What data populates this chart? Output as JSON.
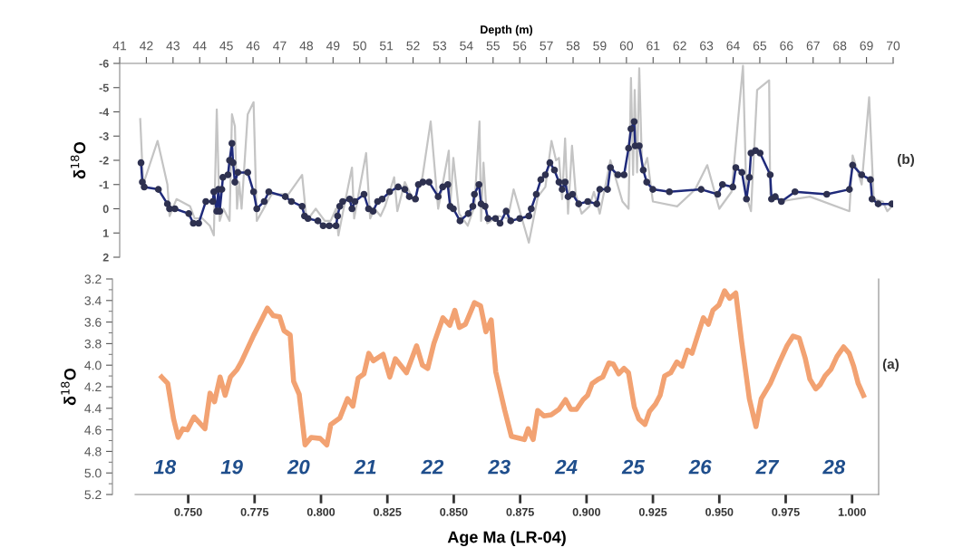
{
  "chart_data": [
    {
      "type": "line",
      "xlabel": "Depth (m)",
      "ylabel": "δ$^{18}$O",
      "xlim": [
        41,
        70
      ],
      "xticks": [
        41,
        42,
        43,
        44,
        45,
        46,
        47,
        48,
        49,
        50,
        51,
        52,
        53,
        54,
        55,
        56,
        57,
        58,
        59,
        60,
        61,
        62,
        63,
        64,
        65,
        66,
        67,
        68,
        69,
        70
      ],
      "ylim": [
        2,
        -6
      ],
      "yticks": [
        {
          "value": -6,
          "label": "-6"
        },
        {
          "value": -5,
          "label": "-5"
        },
        {
          "value": -4,
          "label": "-4"
        },
        {
          "value": -3,
          "label": "-3"
        },
        {
          "value": -2,
          "label": "-2"
        },
        {
          "value": -1,
          "label": "-1"
        },
        0,
        1,
        2
      ],
      "series": [
        {
          "color": "#c4c4c4",
          "marker": "none",
          "x": [
            41.77,
            41.88,
            42.42,
            42.79,
            42.87,
            43.13,
            43.64,
            43.81,
            44.1,
            44.38,
            44.53,
            44.64,
            44.75,
            44.89,
            45.12,
            45.21,
            45.32,
            45.4,
            45.48,
            45.57,
            45.8,
            46.02,
            46.14,
            46.7,
            47.33,
            47.84,
            48.01,
            48.35,
            48.69,
            48.91,
            49.11,
            49.2,
            49.36,
            49.71,
            49.79,
            50.24,
            50.39,
            50.56,
            50.78,
            50.95,
            51.29,
            51.41,
            51.69,
            52.03,
            52.35,
            52.66,
            52.94,
            53.34,
            53.39,
            53.51,
            53.73,
            54.05,
            54.3,
            54.49,
            54.55,
            54.64,
            54.78,
            55.21,
            55.55,
            55.77,
            56.34,
            56.68,
            56.96,
            57.19,
            57.36,
            57.47,
            57.59,
            57.7,
            57.81,
            57.96,
            58.1,
            58.32,
            58.61,
            58.78,
            59.0,
            59.4,
            59.85,
            60.08,
            60.17,
            60.25,
            60.31,
            60.4,
            60.48,
            60.59,
            60.78,
            60.99,
            61.9,
            62.58,
            63.03,
            63.48,
            63.94,
            64.37,
            64.5,
            64.67,
            64.9,
            65.35,
            65.39,
            65.75,
            66.88,
            68.36,
            68.48,
            68.82,
            69.1,
            69.27,
            69.61,
            69.78,
            69.95
          ],
          "values": [
            -3.7,
            -1.0,
            -2.8,
            -1.0,
            0.3,
            -0.4,
            -0.1,
            0.4,
            0.4,
            0.7,
            1.1,
            -4.1,
            0.5,
            0.0,
            0.5,
            -3.9,
            -3.4,
            0.0,
            -1.1,
            0.0,
            -3.9,
            -4.4,
            0.5,
            -0.6,
            -0.6,
            -1.4,
            0.5,
            0.0,
            0.5,
            0.5,
            0.0,
            1.1,
            0.2,
            -1.7,
            0.4,
            -2.3,
            0.4,
            0.0,
            0.3,
            -0.1,
            -1.3,
            0.1,
            -1.1,
            -0.3,
            -1.3,
            -3.6,
            0.0,
            -2.4,
            0.0,
            -2.1,
            0.2,
            0.7,
            -0.1,
            -3.6,
            0.5,
            -1.9,
            0.6,
            0.3,
            0.4,
            -0.8,
            1.4,
            -0.5,
            -0.9,
            -2.8,
            -2.0,
            -2.1,
            -0.4,
            -2.9,
            0.2,
            -2.6,
            -0.6,
            0.2,
            -0.1,
            -0.7,
            0.2,
            -2.0,
            -0.3,
            0.0,
            -5.4,
            -1.4,
            -4.9,
            -1.5,
            -5.8,
            -1.5,
            -2.1,
            -0.3,
            -0.1,
            -0.8,
            -1.8,
            0.0,
            -0.7,
            -5.9,
            -0.5,
            0.1,
            -4.9,
            -5.3,
            -0.6,
            -0.3,
            -0.5,
            0.1,
            -2.2,
            -1.0,
            -4.6,
            -0.4,
            -0.3,
            0.1,
            -0.1
          ]
        },
        {
          "color": "#1f2a7a",
          "marker": "circle",
          "x": [
            41.8,
            41.85,
            41.92,
            42.45,
            42.79,
            42.87,
            43.07,
            43.59,
            43.76,
            43.96,
            44.23,
            44.49,
            44.53,
            44.64,
            44.7,
            44.75,
            44.83,
            44.87,
            45.06,
            45.12,
            45.21,
            45.25,
            45.32,
            45.43,
            45.8,
            46.02,
            46.14,
            46.42,
            46.59,
            47.21,
            47.44,
            47.84,
            47.93,
            48.06,
            48.43,
            48.63,
            48.86,
            49.11,
            49.17,
            49.25,
            49.36,
            49.62,
            49.71,
            49.82,
            50.16,
            50.33,
            50.5,
            50.67,
            50.84,
            51.12,
            51.44,
            51.69,
            51.86,
            52.09,
            52.2,
            52.37,
            52.6,
            52.94,
            53.11,
            53.3,
            53.39,
            53.51,
            53.76,
            54.07,
            54.24,
            54.3,
            54.47,
            54.55,
            54.7,
            54.81,
            55.09,
            55.26,
            55.49,
            55.66,
            56.0,
            56.34,
            56.43,
            56.62,
            56.79,
            56.96,
            57.13,
            57.3,
            57.47,
            57.59,
            57.7,
            57.81,
            57.98,
            58.21,
            58.55,
            58.89,
            59.0,
            59.29,
            59.4,
            59.68,
            59.91,
            60.08,
            60.17,
            60.29,
            60.33,
            60.48,
            60.63,
            60.76,
            60.99,
            61.61,
            62.8,
            63.42,
            63.6,
            63.99,
            64.1,
            64.33,
            64.5,
            64.61,
            64.67,
            64.84,
            65.01,
            65.39,
            65.44,
            65.58,
            65.81,
            66.32,
            67.51,
            68.36,
            68.48,
            68.82,
            69.15,
            69.21,
            69.44,
            69.95
          ],
          "values": [
            -1.9,
            -1.1,
            -0.9,
            -0.8,
            -0.2,
            0.0,
            0.0,
            0.2,
            0.6,
            0.6,
            -0.3,
            -0.3,
            -0.7,
            0.1,
            -0.8,
            0.1,
            -0.8,
            -1.3,
            -1.4,
            -2.0,
            -2.7,
            -1.9,
            -1.1,
            -1.5,
            -1.5,
            -0.7,
            0.0,
            -0.3,
            -0.7,
            -0.5,
            -0.3,
            -0.1,
            0.3,
            0.4,
            0.5,
            0.7,
            0.7,
            0.7,
            0.3,
            -0.1,
            -0.3,
            -0.4,
            0.0,
            -0.3,
            -0.6,
            0.0,
            0.1,
            -0.3,
            -0.4,
            -0.7,
            -0.9,
            -0.8,
            -0.5,
            -0.4,
            -1.0,
            -1.1,
            -1.1,
            -0.5,
            -0.9,
            -1.0,
            -0.1,
            0.0,
            0.5,
            0.2,
            -0.1,
            -0.6,
            -1.0,
            -0.2,
            -0.1,
            0.4,
            0.4,
            0.6,
            0.1,
            0.5,
            0.4,
            0.3,
            0.0,
            -0.6,
            -1.2,
            -1.4,
            -1.9,
            -1.6,
            -1.1,
            -0.8,
            -1.1,
            -0.5,
            -0.6,
            -0.2,
            -0.3,
            -0.2,
            -0.8,
            -0.8,
            -1.7,
            -1.4,
            -1.4,
            -2.5,
            -3.3,
            -3.6,
            -2.6,
            -2.6,
            -1.6,
            -1.1,
            -0.8,
            -0.7,
            -0.8,
            -0.6,
            -1.0,
            -0.9,
            -1.7,
            -1.5,
            -0.4,
            -1.3,
            -2.3,
            -2.4,
            -2.3,
            -1.4,
            -0.4,
            -0.5,
            -0.3,
            -0.7,
            -0.6,
            -0.8,
            -1.8,
            -1.4,
            -1.2,
            -0.4,
            -0.2,
            -0.2
          ]
        }
      ],
      "annotations": [
        "(b)"
      ]
    },
    {
      "type": "line",
      "xlabel": "Age Ma (LR-04)",
      "ylabel": "δ$^{18}$O",
      "xlim": [
        0.73,
        1.01
      ],
      "xticks": [
        {
          "value": 0.75,
          "label": "0.750"
        },
        {
          "value": 0.775,
          "label": "0.775"
        },
        {
          "value": 0.8,
          "label": "0.800"
        },
        {
          "value": 0.825,
          "label": "0.825"
        },
        {
          "value": 0.85,
          "label": "0.850"
        },
        {
          "value": 0.875,
          "label": "0.875"
        },
        {
          "value": 0.9,
          "label": "0.900"
        },
        {
          "value": 0.925,
          "label": "0.925"
        },
        {
          "value": 0.95,
          "label": "0.950"
        },
        {
          "value": 0.975,
          "label": "0.975"
        },
        {
          "value": 1.0,
          "label": "1.000"
        }
      ],
      "ylim": [
        5.2,
        3.2
      ],
      "yticks": [
        3.2,
        3.4,
        3.6,
        3.8,
        {
          "value": 4.0,
          "label": "4.0"
        },
        4.2,
        4.4,
        4.6,
        4.8,
        {
          "value": 5.0,
          "label": "5.0"
        },
        5.2
      ],
      "series": [
        {
          "color": "#f2a272",
          "marker": "none",
          "x": [
            0.74,
            0.7423,
            0.7445,
            0.7462,
            0.748,
            0.7497,
            0.7522,
            0.7563,
            0.7582,
            0.7599,
            0.762,
            0.7639,
            0.7659,
            0.7684,
            0.77,
            0.7747,
            0.777,
            0.7798,
            0.782,
            0.7844,
            0.7861,
            0.7884,
            0.7897,
            0.7918,
            0.794,
            0.7963,
            0.7997,
            0.8022,
            0.8037,
            0.8071,
            0.81,
            0.812,
            0.814,
            0.8162,
            0.818,
            0.8197,
            0.8234,
            0.8259,
            0.828,
            0.8322,
            0.836,
            0.8382,
            0.8402,
            0.8425,
            0.8459,
            0.8485,
            0.8504,
            0.8521,
            0.8544,
            0.8578,
            0.8601,
            0.8621,
            0.8641,
            0.8658,
            0.8692,
            0.8717,
            0.8766,
            0.878,
            0.8799,
            0.8816,
            0.8839,
            0.8867,
            0.8896,
            0.8921,
            0.8941,
            0.8962,
            0.8987,
            0.9004,
            0.9021,
            0.9044,
            0.9061,
            0.9084,
            0.9101,
            0.9121,
            0.9141,
            0.9158,
            0.918,
            0.9197,
            0.922,
            0.9237,
            0.926,
            0.9277,
            0.9294,
            0.9317,
            0.934,
            0.936,
            0.938,
            0.9397,
            0.9419,
            0.944,
            0.9459,
            0.9476,
            0.9499,
            0.952,
            0.9539,
            0.9562,
            0.9584,
            0.9613,
            0.9638,
            0.9658,
            0.9692,
            0.9727,
            0.9755,
            0.9778,
            0.9801,
            0.9824,
            0.9841,
            0.9863,
            0.988,
            0.9898,
            0.992,
            0.9943,
            0.9968,
            0.9989,
            1.0006,
            1.0023,
            1.0043
          ],
          "values": [
            4.11,
            4.17,
            4.5,
            4.67,
            4.59,
            4.6,
            4.48,
            4.59,
            4.26,
            4.34,
            4.11,
            4.28,
            4.11,
            4.04,
            3.97,
            3.72,
            3.61,
            3.47,
            3.54,
            3.55,
            3.68,
            3.72,
            4.15,
            4.27,
            4.74,
            4.67,
            4.68,
            4.74,
            4.55,
            4.49,
            4.31,
            4.38,
            4.12,
            4.08,
            3.89,
            3.96,
            3.9,
            4.11,
            3.94,
            4.07,
            3.82,
            4.0,
            4.03,
            3.8,
            3.56,
            3.63,
            3.49,
            3.65,
            3.62,
            3.42,
            3.45,
            3.69,
            3.58,
            4.06,
            4.42,
            4.66,
            4.69,
            4.59,
            4.69,
            4.42,
            4.47,
            4.46,
            4.41,
            4.32,
            4.41,
            4.41,
            4.32,
            4.28,
            4.17,
            4.13,
            4.11,
            3.98,
            3.99,
            4.08,
            4.03,
            4.07,
            4.39,
            4.5,
            4.55,
            4.43,
            4.36,
            4.28,
            4.1,
            4.07,
            3.97,
            4.01,
            3.86,
            3.89,
            3.72,
            3.56,
            3.62,
            3.49,
            3.44,
            3.31,
            3.38,
            3.33,
            3.78,
            4.31,
            4.57,
            4.31,
            4.17,
            3.97,
            3.82,
            3.73,
            3.75,
            3.94,
            4.13,
            4.22,
            4.18,
            4.1,
            4.04,
            3.92,
            3.83,
            3.89,
            4.01,
            4.17,
            4.28
          ]
        }
      ],
      "annotations": [
        "(a)",
        "18",
        "19",
        "20",
        "21",
        "22",
        "23",
        "24",
        "25",
        "26",
        "27",
        "28"
      ]
    }
  ]
}
